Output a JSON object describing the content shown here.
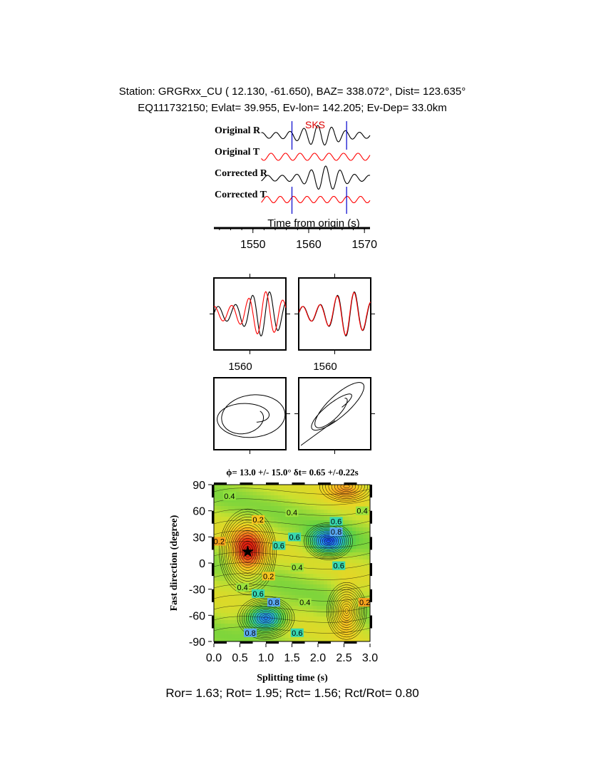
{
  "header": {
    "line1": "Station: GRGRxx_CU (  12.130,  -61.650), BAZ=  338.072°, Dist=  123.635°",
    "line2": "EQ111732150; Evlat=  39.955, Ev-lon= 142.205; Ev-Dep= 33.0km"
  },
  "colors": {
    "trace_primary": "#000000",
    "trace_secondary": "#ff0000",
    "window_marker": "#0000cc",
    "phase_label": "#dd0000"
  },
  "chart_data": [
    {
      "type": "line",
      "name": "waveforms",
      "traces": [
        "Original R",
        "Original T",
        "Corrected R",
        "Corrected T"
      ],
      "phase_label": "SKS",
      "window_start_s": 1557,
      "window_end_s": 1566.8,
      "xlabel": "Time from origin (s)",
      "xlim": [
        1543,
        1571
      ],
      "xticks": [
        "1550",
        "1560",
        "1570"
      ]
    },
    {
      "type": "line",
      "name": "waveform-overlay-panels",
      "panels": [
        {
          "x_tick": "1560",
          "note": "original fast/slow components"
        },
        {
          "x_tick": "1560",
          "note": "corrected fast/slow components"
        }
      ]
    },
    {
      "type": "scatter",
      "name": "particle-motion",
      "panels": [
        "original",
        "corrected"
      ]
    },
    {
      "type": "heatmap",
      "name": "energy-grid",
      "title": "ϕ= 13.0 +/- 15.0° δt= 0.65 +/-0.22s",
      "xlabel": "Splitting time (s)",
      "ylabel": "Fast direction (degree)",
      "xlim": [
        0.0,
        3.0
      ],
      "ylim": [
        -90,
        90
      ],
      "xticks": [
        "0.0",
        "0.5",
        "1.0",
        "1.5",
        "2.0",
        "2.5",
        "3.0"
      ],
      "yticks": [
        "90",
        "60",
        "30",
        "0",
        "-30",
        "-60",
        "-90"
      ],
      "best_fit": {
        "dt": 0.65,
        "phi": 13.0
      },
      "contour_labels": [
        {
          "text": "0.4",
          "dt": 0.3,
          "phi": 77,
          "bg": "#8ee23c"
        },
        {
          "text": "0.2",
          "dt": 0.85,
          "phi": 50,
          "bg": "#f4c420"
        },
        {
          "text": "0.2",
          "dt": 0.1,
          "phi": 25,
          "bg": "#f7a21e"
        },
        {
          "text": "0.4",
          "dt": 1.5,
          "phi": 58,
          "bg": "#9be23c"
        },
        {
          "text": "0.6",
          "dt": 2.35,
          "phi": 48,
          "bg": "#38d8b0"
        },
        {
          "text": "0.6",
          "dt": 1.55,
          "phi": 30,
          "bg": "#38d8b0"
        },
        {
          "text": "0.8",
          "dt": 2.35,
          "phi": 36,
          "bg": "#5aa8f0"
        },
        {
          "text": "0.6",
          "dt": 1.25,
          "phi": 20,
          "bg": "#38d8b0"
        },
        {
          "text": "0.4",
          "dt": 1.6,
          "phi": -5,
          "bg": "#9be23c"
        },
        {
          "text": "0.6",
          "dt": 2.4,
          "phi": -3,
          "bg": "#38d8b0"
        },
        {
          "text": "0.2",
          "dt": 1.05,
          "phi": -15,
          "bg": "#f4c420"
        },
        {
          "text": "0.4",
          "dt": 0.55,
          "phi": -28,
          "bg": "#9be23c"
        },
        {
          "text": "0.6",
          "dt": 0.85,
          "phi": -35,
          "bg": "#38d8b0"
        },
        {
          "text": "0.8",
          "dt": 1.15,
          "phi": -45,
          "bg": "#5aa8f0"
        },
        {
          "text": "0.4",
          "dt": 1.75,
          "phi": -45,
          "bg": "#9be23c"
        },
        {
          "text": "0.2",
          "dt": 2.9,
          "phi": -45,
          "bg": "#f7a21e"
        },
        {
          "text": "0.8",
          "dt": 0.7,
          "phi": -80,
          "bg": "#5aa8f0"
        },
        {
          "text": "0.6",
          "dt": 1.6,
          "phi": -80,
          "bg": "#38d8b0"
        },
        {
          "text": "0.4",
          "dt": 2.85,
          "phi": 60,
          "bg": "#9be23c"
        }
      ],
      "colorscale": [
        "#e02010",
        "#f08020",
        "#f6d020",
        "#c8e030",
        "#60d040",
        "#30c8a0",
        "#2890f0",
        "#1020e0"
      ]
    }
  ],
  "footer": {
    "text": "Ror= 1.63; Rot= 1.95; Rct= 1.56; Rct/Rot= 0.80"
  }
}
